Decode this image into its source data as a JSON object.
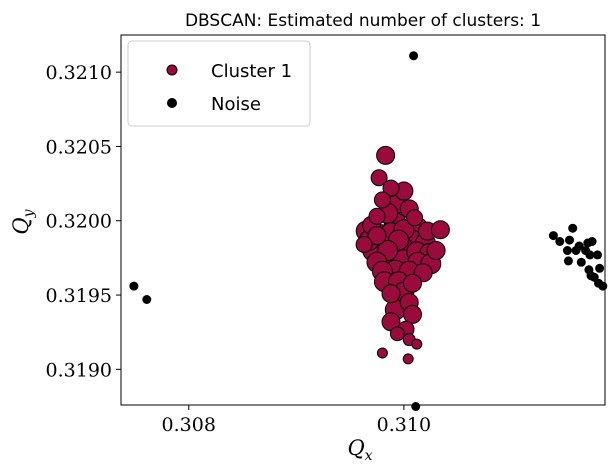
{
  "chart_data": {
    "type": "scatter",
    "title": "DBSCAN: Estimated number of clusters: 1",
    "xlabel_main": "Q",
    "xlabel_sub": "x",
    "ylabel_main": "Q",
    "ylabel_sub": "y",
    "xlim": [
      0.30737,
      0.31187
    ],
    "ylim": [
      0.31876,
      0.32125
    ],
    "xticks": [
      0.308,
      0.31
    ],
    "xtick_labels": [
      "0.308",
      "0.310"
    ],
    "yticks": [
      0.319,
      0.3195,
      0.32,
      0.3205,
      0.321
    ],
    "ytick_labels": [
      "0.3190",
      "0.3195",
      "0.3200",
      "0.3205",
      "0.3210"
    ],
    "grid": false,
    "legend_position": "top-left",
    "series": [
      {
        "name": "Cluster 1",
        "color": "#9b0a3c",
        "edge_color": "#000000",
        "points": [
          [
            0.30983,
            0.32044,
            9
          ],
          [
            0.30977,
            0.32029,
            8
          ],
          [
            0.30988,
            0.32022,
            8
          ],
          [
            0.31,
            0.3202,
            9
          ],
          [
            0.30995,
            0.32012,
            10
          ],
          [
            0.3098,
            0.32014,
            8
          ],
          [
            0.31005,
            0.32008,
            9
          ],
          [
            0.30985,
            0.32005,
            10
          ],
          [
            0.3101,
            0.32002,
            8
          ],
          [
            0.30975,
            0.32003,
            8
          ],
          [
            0.30992,
            0.31998,
            11
          ],
          [
            0.3097,
            0.31997,
            9
          ],
          [
            0.30965,
            0.31993,
            10
          ],
          [
            0.30978,
            0.3199,
            11
          ],
          [
            0.30988,
            0.31992,
            10
          ],
          [
            0.31,
            0.31994,
            10
          ],
          [
            0.31012,
            0.31995,
            11
          ],
          [
            0.31022,
            0.31993,
            9
          ],
          [
            0.31034,
            0.31994,
            9
          ],
          [
            0.30968,
            0.31987,
            10
          ],
          [
            0.30982,
            0.31985,
            11
          ],
          [
            0.30995,
            0.31987,
            10
          ],
          [
            0.31008,
            0.31986,
            11
          ],
          [
            0.3102,
            0.31985,
            10
          ],
          [
            0.30972,
            0.3198,
            11
          ],
          [
            0.30985,
            0.3198,
            10
          ],
          [
            0.30998,
            0.31982,
            11
          ],
          [
            0.31012,
            0.31979,
            10
          ],
          [
            0.31024,
            0.31978,
            10
          ],
          [
            0.30975,
            0.31972,
            10
          ],
          [
            0.30988,
            0.31974,
            11
          ],
          [
            0.31,
            0.31973,
            11
          ],
          [
            0.31013,
            0.31972,
            10
          ],
          [
            0.31025,
            0.31971,
            10
          ],
          [
            0.3098,
            0.31966,
            10
          ],
          [
            0.30992,
            0.31966,
            11
          ],
          [
            0.31005,
            0.31966,
            10
          ],
          [
            0.31018,
            0.31965,
            9
          ],
          [
            0.30982,
            0.31959,
            10
          ],
          [
            0.30995,
            0.31959,
            10
          ],
          [
            0.31008,
            0.31958,
            9
          ],
          [
            0.31,
            0.31952,
            10
          ],
          [
            0.30988,
            0.31951,
            9
          ],
          [
            0.31005,
            0.31945,
            9
          ],
          [
            0.30992,
            0.3194,
            10
          ],
          [
            0.31008,
            0.31937,
            9
          ],
          [
            0.30988,
            0.31932,
            9
          ],
          [
            0.31002,
            0.31927,
            8
          ],
          [
            0.30994,
            0.31924,
            7
          ],
          [
            0.31005,
            0.3192,
            6
          ],
          [
            0.31012,
            0.31917,
            5
          ],
          [
            0.3098,
            0.31911,
            5
          ],
          [
            0.31004,
            0.31907,
            5
          ],
          [
            0.30975,
            0.3199,
            9
          ],
          [
            0.30963,
            0.31984,
            8
          ],
          [
            0.3103,
            0.3198,
            9
          ]
        ]
      },
      {
        "name": "Noise",
        "color": "#000000",
        "points": [
          [
            0.30749,
            0.31956
          ],
          [
            0.30761,
            0.31947
          ],
          [
            0.31009,
            0.32111
          ],
          [
            0.31011,
            0.31875
          ],
          [
            0.31139,
            0.3199
          ],
          [
            0.31145,
            0.31986
          ],
          [
            0.31152,
            0.3198
          ],
          [
            0.31154,
            0.31987
          ],
          [
            0.31157,
            0.31995
          ],
          [
            0.3116,
            0.3198
          ],
          [
            0.31163,
            0.31983
          ],
          [
            0.31153,
            0.31973
          ],
          [
            0.31165,
            0.31972
          ],
          [
            0.31169,
            0.3198
          ],
          [
            0.31171,
            0.31985
          ],
          [
            0.31173,
            0.31977
          ],
          [
            0.31175,
            0.31986
          ],
          [
            0.31172,
            0.31967
          ],
          [
            0.31177,
            0.31962
          ],
          [
            0.3118,
            0.31977
          ],
          [
            0.31182,
            0.31968
          ],
          [
            0.31181,
            0.31958
          ],
          [
            0.31185,
            0.31956
          ],
          [
            0.31174,
            0.31963
          ],
          [
            0.31199,
            0.31939
          ]
        ]
      }
    ]
  }
}
